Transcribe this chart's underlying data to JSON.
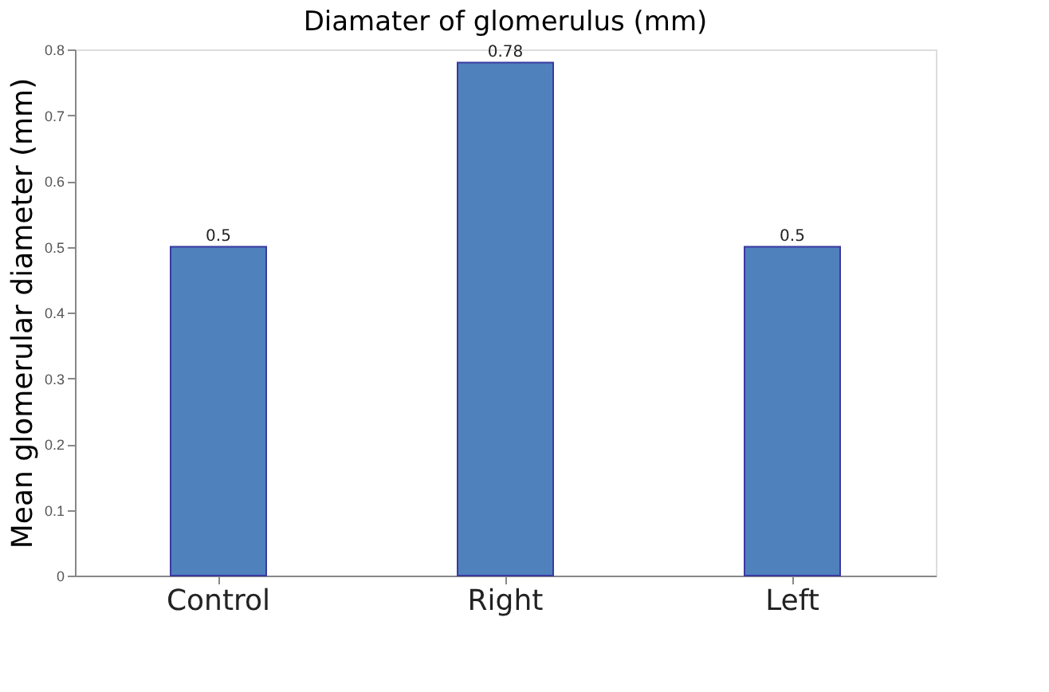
{
  "chart_data": {
    "type": "bar",
    "title": "Diamater of glomerulus (mm)",
    "ylabel": "Mean glomerular diameter (mm)",
    "categories": [
      "Control",
      "Right",
      "Left"
    ],
    "values": [
      0.5,
      0.78,
      0.5
    ],
    "color": "#4f81bd",
    "ylim": [
      0,
      0.8
    ],
    "yticks": [
      0,
      0.1,
      0.2,
      0.3,
      0.4,
      0.5,
      0.6,
      0.7,
      0.8
    ],
    "data_labels": true
  }
}
